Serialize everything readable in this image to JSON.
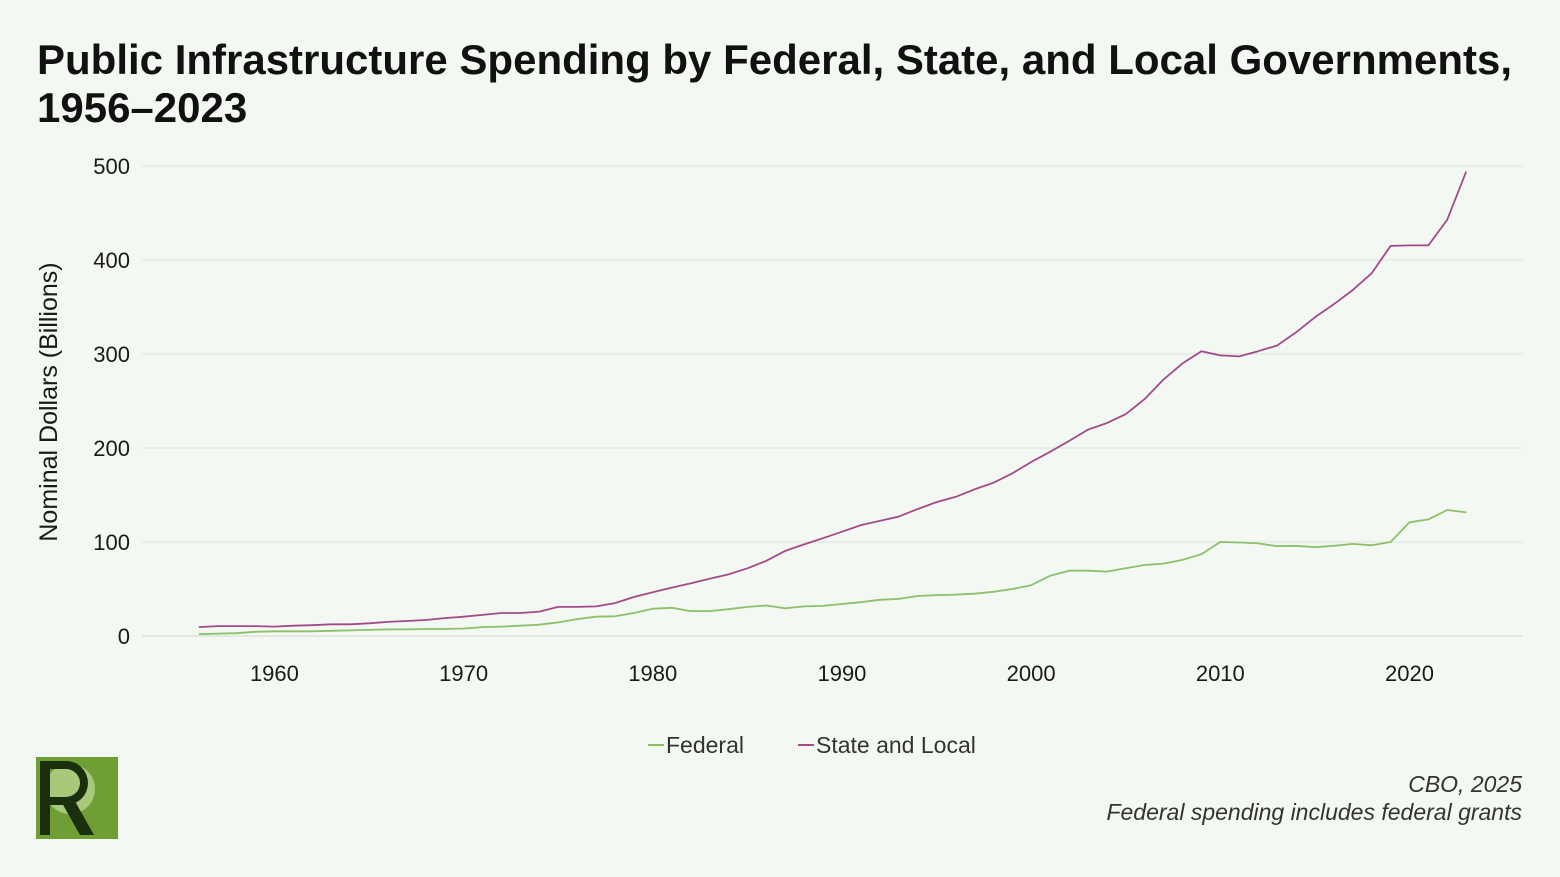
{
  "title": "Public Infrastructure Spending by Federal, State, and Local Governments, 1956–2023",
  "source_lines": [
    "CBO, 2025",
    "Federal spending includes federal grants"
  ],
  "logo": {
    "letter": "R",
    "icon": "r-logo-icon",
    "colors": [
      "#6f9e35",
      "#1b2f0f"
    ]
  },
  "chart_data": {
    "type": "line",
    "title": "Public Infrastructure Spending by Federal, State, and Local Governments, 1956–2023",
    "xlabel": "",
    "ylabel": "Nominal Dollars (Billions)",
    "xlim": [
      1953,
      2026
    ],
    "ylim": [
      0,
      500
    ],
    "xticks": [
      1960,
      1970,
      1980,
      1990,
      2000,
      2010,
      2020
    ],
    "yticks": [
      0,
      100,
      200,
      300,
      400,
      500
    ],
    "grid": "horizontal",
    "legend_position": "bottom-center",
    "x": [
      1956,
      1957,
      1958,
      1959,
      1960,
      1961,
      1962,
      1963,
      1964,
      1965,
      1966,
      1967,
      1968,
      1969,
      1970,
      1971,
      1972,
      1973,
      1974,
      1975,
      1976,
      1977,
      1978,
      1979,
      1980,
      1981,
      1982,
      1983,
      1984,
      1985,
      1986,
      1987,
      1988,
      1989,
      1990,
      1991,
      1992,
      1993,
      1994,
      1995,
      1996,
      1997,
      1998,
      1999,
      2000,
      2001,
      2002,
      2003,
      2004,
      2005,
      2006,
      2007,
      2008,
      2009,
      2010,
      2011,
      2012,
      2013,
      2014,
      2015,
      2016,
      2017,
      2018,
      2019,
      2020,
      2021,
      2022,
      2023
    ],
    "series": [
      {
        "name": "Federal",
        "color": "#8cc06a",
        "values": [
          2,
          2.5,
          3,
          4.5,
          5,
          5,
          5,
          5.5,
          6,
          6.5,
          7,
          7,
          7.5,
          7.5,
          8,
          9.5,
          10,
          11,
          12,
          14.5,
          18,
          20.5,
          21,
          24.5,
          29,
          30,
          26.5,
          26.5,
          28.5,
          31,
          32.5,
          29.5,
          31.5,
          32,
          34,
          36,
          38.5,
          39.5,
          42.5,
          43.5,
          44,
          45,
          47,
          50,
          54,
          64,
          69.5,
          69.5,
          68.5,
          72,
          75.5,
          77,
          81,
          87,
          100,
          99.5,
          98.5,
          95.5,
          96,
          94.5,
          96,
          98,
          96.5,
          100,
          121,
          124,
          134,
          131.5
        ]
      },
      {
        "name": "State and Local",
        "color": "#a44a8c",
        "values": [
          9.5,
          10.5,
          10.5,
          10.5,
          10,
          11,
          11.5,
          12.5,
          12.5,
          13.5,
          15,
          16,
          17,
          19,
          20.5,
          22.5,
          24.5,
          24.5,
          26,
          31,
          31,
          31.5,
          35,
          41.5,
          46.5,
          51.5,
          56,
          61,
          65.5,
          72,
          80,
          90.5,
          97.5,
          104,
          111,
          118,
          122.5,
          127,
          135,
          142.5,
          148,
          156,
          163,
          173,
          185,
          196,
          207.5,
          219.5,
          226.5,
          236,
          252,
          273,
          290,
          303,
          298.5,
          297.5,
          303,
          309,
          323,
          339,
          353,
          368,
          386,
          415,
          415.5,
          415.5,
          443,
          494
        ]
      }
    ]
  }
}
